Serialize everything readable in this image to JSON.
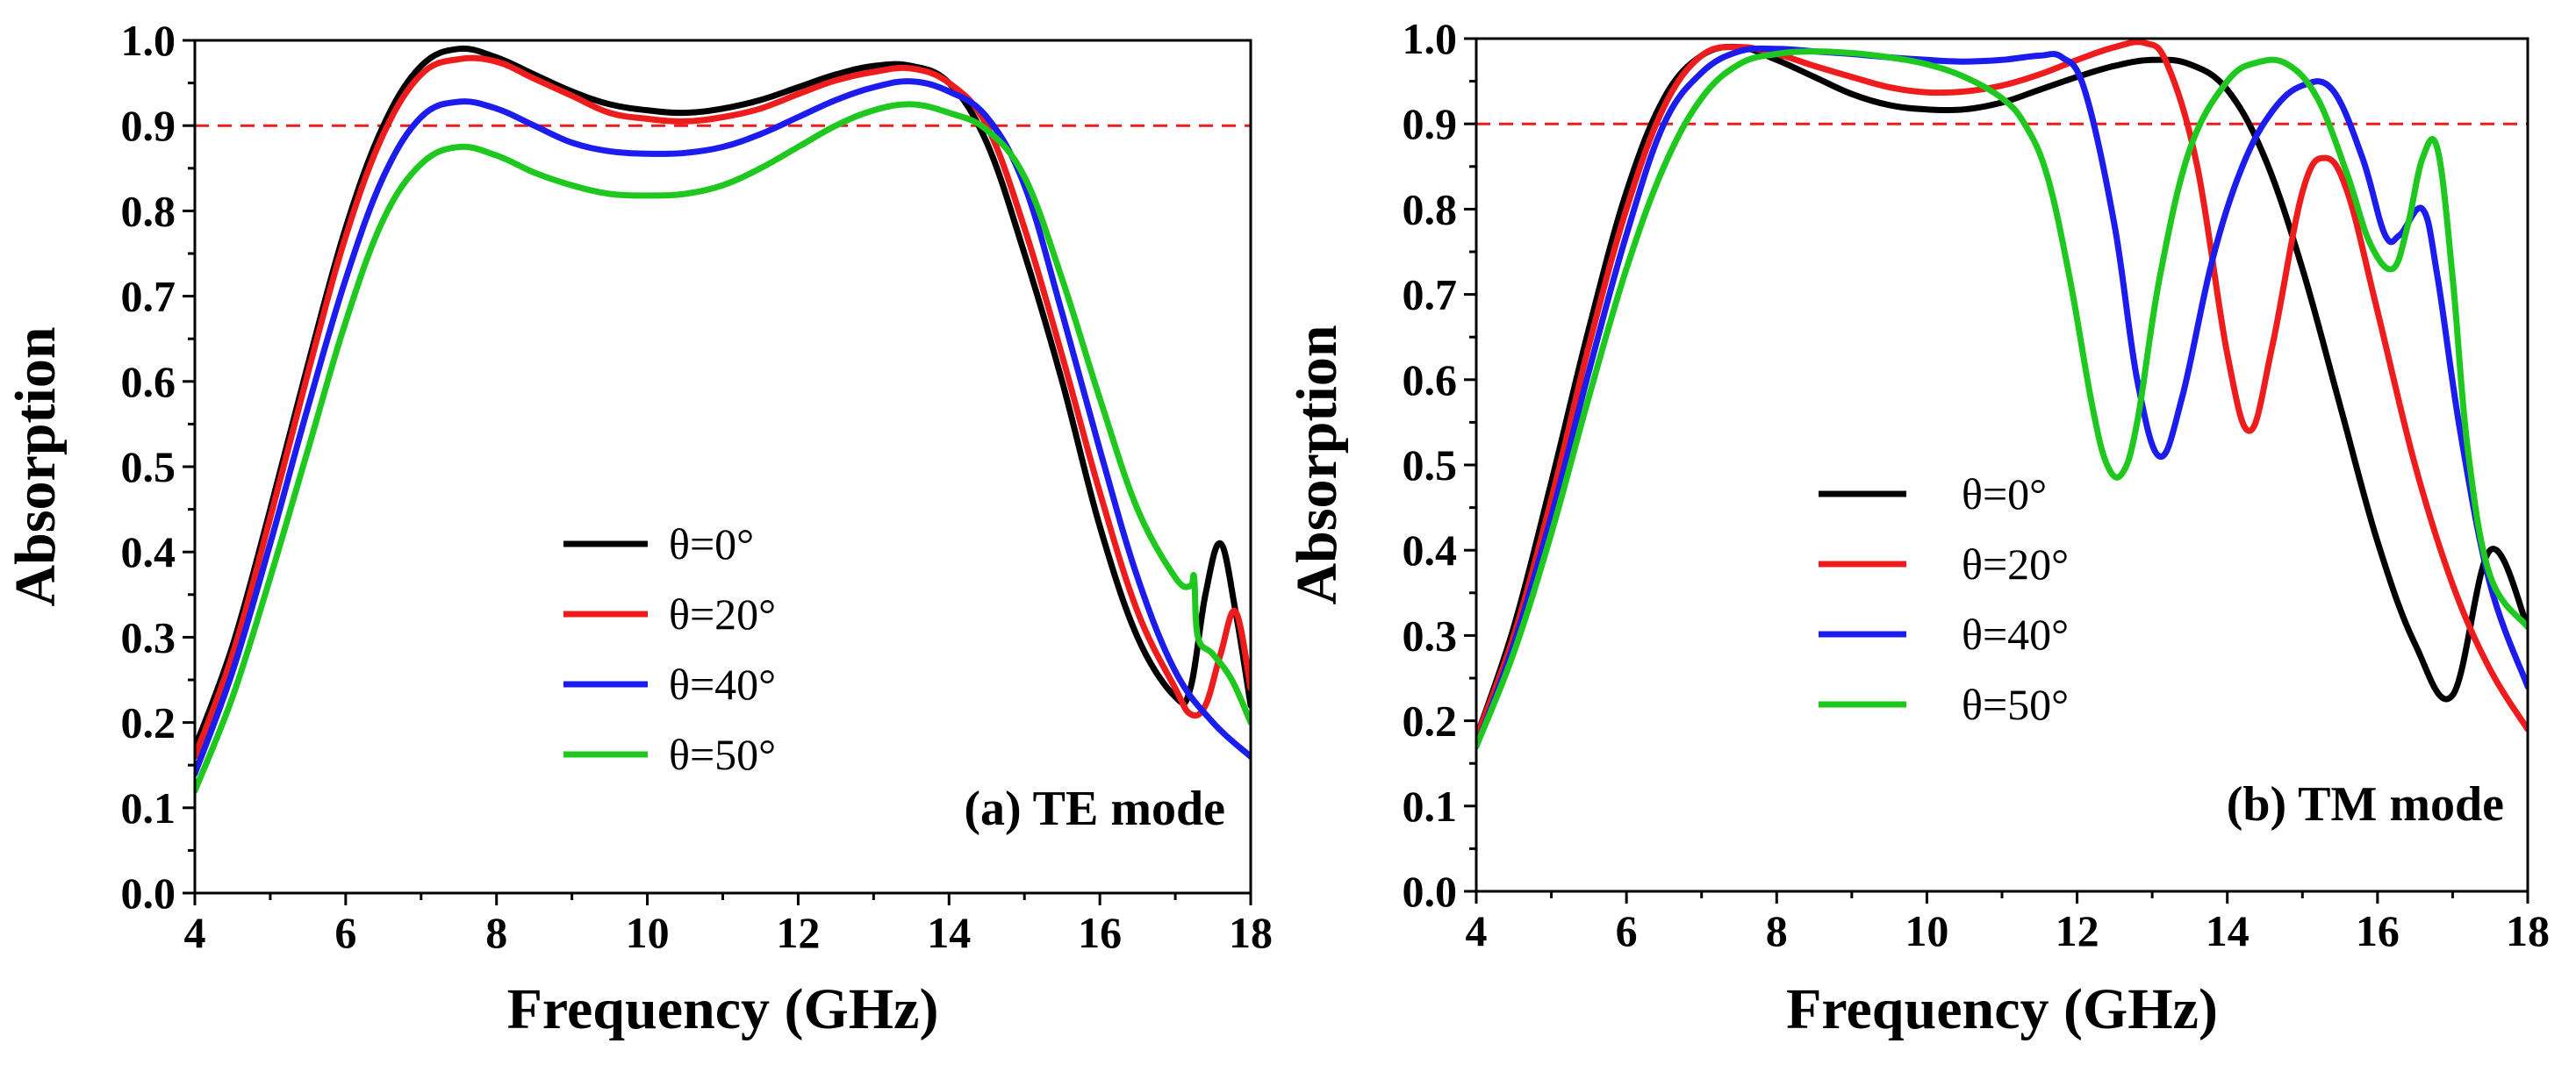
{
  "chart_data": [
    {
      "type": "line",
      "panel": "a",
      "annotation": "(a) TE mode",
      "xlabel": "Frequency (GHz)",
      "ylabel": "Absorption",
      "xlim": [
        4,
        18
      ],
      "ylim": [
        0.0,
        1.0
      ],
      "xticks": [
        4,
        6,
        8,
        10,
        12,
        14,
        16,
        18
      ],
      "yticks": [
        0.0,
        0.1,
        0.2,
        0.3,
        0.4,
        0.5,
        0.6,
        0.7,
        0.8,
        0.9,
        1.0
      ],
      "xtick_labels": [
        "4",
        "6",
        "8",
        "10",
        "12",
        "14",
        "16",
        "18"
      ],
      "ytick_labels": [
        "0.0",
        "0.1",
        "0.2",
        "0.3",
        "0.4",
        "0.5",
        "0.6",
        "0.7",
        "0.8",
        "0.9",
        "1.0"
      ],
      "reference_line": {
        "y": 0.9,
        "color": "#ee1c1c",
        "style": "dashed"
      },
      "legend_position": "center",
      "series": [
        {
          "name": "θ=0°",
          "color": "#000000",
          "x": [
            4,
            4.5,
            5,
            5.5,
            6,
            6.5,
            7,
            7.5,
            8,
            8.5,
            9,
            9.5,
            10,
            10.5,
            11,
            11.5,
            12,
            12.5,
            13,
            13.5,
            14,
            14.5,
            15,
            15.5,
            16,
            16.5,
            17,
            17.2,
            17.4,
            17.6,
            17.8,
            18
          ],
          "y": [
            0.17,
            0.29,
            0.45,
            0.62,
            0.78,
            0.9,
            0.97,
            0.99,
            0.98,
            0.96,
            0.94,
            0.925,
            0.918,
            0.915,
            0.92,
            0.93,
            0.945,
            0.96,
            0.97,
            0.97,
            0.95,
            0.88,
            0.75,
            0.6,
            0.43,
            0.3,
            0.23,
            0.24,
            0.35,
            0.41,
            0.33,
            0.22
          ]
        },
        {
          "name": "θ=20°",
          "color": "#ee1c1c",
          "x": [
            4,
            4.5,
            5,
            5.5,
            6,
            6.5,
            7,
            7.5,
            8,
            8.5,
            9,
            9.5,
            10,
            10.5,
            11,
            11.5,
            12,
            12.5,
            13,
            13.5,
            14,
            14.5,
            15,
            15.5,
            16,
            16.5,
            17,
            17.2,
            17.4,
            17.6,
            17.8,
            18
          ],
          "y": [
            0.16,
            0.28,
            0.44,
            0.61,
            0.77,
            0.89,
            0.96,
            0.978,
            0.975,
            0.955,
            0.935,
            0.915,
            0.908,
            0.905,
            0.91,
            0.92,
            0.937,
            0.953,
            0.963,
            0.967,
            0.95,
            0.9,
            0.78,
            0.63,
            0.47,
            0.33,
            0.24,
            0.21,
            0.22,
            0.28,
            0.33,
            0.24
          ]
        },
        {
          "name": "θ=40°",
          "color": "#1c1cee",
          "x": [
            4,
            4.5,
            5,
            5.5,
            6,
            6.5,
            7,
            7.5,
            8,
            8.5,
            9,
            9.5,
            10,
            10.5,
            11,
            11.5,
            12,
            12.5,
            13,
            13.5,
            14,
            14.5,
            15,
            15.5,
            16,
            16.5,
            17,
            17.5,
            18
          ],
          "y": [
            0.14,
            0.26,
            0.41,
            0.57,
            0.72,
            0.84,
            0.91,
            0.928,
            0.92,
            0.9,
            0.88,
            0.87,
            0.867,
            0.868,
            0.875,
            0.89,
            0.91,
            0.93,
            0.945,
            0.952,
            0.94,
            0.91,
            0.83,
            0.68,
            0.52,
            0.37,
            0.26,
            0.2,
            0.16
          ]
        },
        {
          "name": "θ=50°",
          "color": "#1ec81e",
          "x": [
            4,
            4.5,
            5,
            5.5,
            6,
            6.5,
            7,
            7.5,
            8,
            8.5,
            9,
            9.5,
            10,
            10.5,
            11,
            11.5,
            12,
            12.5,
            13,
            13.5,
            14,
            14.5,
            15,
            15.5,
            16,
            16.5,
            17,
            17.2,
            17.25,
            17.3,
            17.5,
            17.75,
            18
          ],
          "y": [
            0.12,
            0.23,
            0.37,
            0.52,
            0.67,
            0.79,
            0.855,
            0.875,
            0.865,
            0.845,
            0.83,
            0.82,
            0.818,
            0.82,
            0.83,
            0.85,
            0.875,
            0.9,
            0.918,
            0.925,
            0.915,
            0.895,
            0.84,
            0.72,
            0.58,
            0.45,
            0.37,
            0.36,
            0.37,
            0.3,
            0.28,
            0.25,
            0.2
          ]
        }
      ]
    },
    {
      "type": "line",
      "panel": "b",
      "annotation": "(b) TM mode",
      "xlabel": "Frequency (GHz)",
      "ylabel": "Absorption",
      "xlim": [
        4,
        18
      ],
      "ylim": [
        0.0,
        1.0
      ],
      "xticks": [
        4,
        6,
        8,
        10,
        12,
        14,
        16,
        18
      ],
      "yticks": [
        0.0,
        0.1,
        0.2,
        0.3,
        0.4,
        0.5,
        0.6,
        0.7,
        0.8,
        0.9,
        1.0
      ],
      "xtick_labels": [
        "4",
        "6",
        "8",
        "10",
        "12",
        "14",
        "16",
        "18"
      ],
      "ytick_labels": [
        "0.0",
        "0.1",
        "0.2",
        "0.3",
        "0.4",
        "0.5",
        "0.6",
        "0.7",
        "0.8",
        "0.9",
        "1.0"
      ],
      "reference_line": {
        "y": 0.9,
        "color": "#ee1c1c",
        "style": "dashed"
      },
      "legend_position": "center",
      "series": [
        {
          "name": "θ=0°",
          "color": "#000000",
          "x": [
            4,
            4.5,
            5,
            5.5,
            6,
            6.5,
            7,
            7.5,
            8,
            8.5,
            9,
            9.5,
            10,
            10.5,
            11,
            11.5,
            12,
            12.5,
            13,
            13.5,
            14,
            14.5,
            15,
            15.5,
            16,
            16.5,
            17,
            17.5,
            18
          ],
          "y": [
            0.18,
            0.31,
            0.48,
            0.66,
            0.82,
            0.93,
            0.98,
            0.99,
            0.975,
            0.955,
            0.935,
            0.922,
            0.917,
            0.917,
            0.925,
            0.94,
            0.955,
            0.968,
            0.975,
            0.97,
            0.94,
            0.86,
            0.73,
            0.57,
            0.41,
            0.29,
            0.23,
            0.4,
            0.31
          ]
        },
        {
          "name": "θ=20°",
          "color": "#ee1c1c",
          "x": [
            4,
            4.5,
            5,
            5.5,
            6,
            6.5,
            7,
            7.5,
            8,
            8.5,
            9,
            9.5,
            10,
            10.5,
            11,
            11.5,
            12,
            12.5,
            12.9,
            13.2,
            13.6,
            14,
            14.3,
            14.6,
            15,
            15.3,
            15.6,
            16,
            16.5,
            17,
            17.5,
            18
          ],
          "y": [
            0.18,
            0.3,
            0.46,
            0.64,
            0.8,
            0.92,
            0.98,
            0.99,
            0.982,
            0.968,
            0.955,
            0.943,
            0.937,
            0.938,
            0.945,
            0.958,
            0.975,
            0.99,
            0.995,
            0.97,
            0.85,
            0.63,
            0.54,
            0.64,
            0.82,
            0.86,
            0.82,
            0.68,
            0.5,
            0.36,
            0.26,
            0.19
          ]
        },
        {
          "name": "θ=40°",
          "color": "#1c1cee",
          "x": [
            4,
            4.5,
            5,
            5.5,
            6,
            6.5,
            7,
            7.5,
            8,
            8.5,
            9,
            9.5,
            10,
            10.5,
            11,
            11.5,
            11.8,
            12.1,
            12.5,
            12.8,
            13.1,
            13.4,
            13.8,
            14.2,
            14.6,
            15,
            15.4,
            15.8,
            16.1,
            16.3,
            16.6,
            16.8,
            17.1,
            17.5,
            18
          ],
          "y": [
            0.17,
            0.29,
            0.44,
            0.61,
            0.77,
            0.9,
            0.96,
            0.985,
            0.988,
            0.985,
            0.982,
            0.978,
            0.975,
            0.973,
            0.975,
            0.98,
            0.978,
            0.94,
            0.78,
            0.6,
            0.51,
            0.58,
            0.74,
            0.85,
            0.915,
            0.945,
            0.94,
            0.86,
            0.77,
            0.77,
            0.8,
            0.72,
            0.54,
            0.36,
            0.24
          ]
        },
        {
          "name": "θ=50°",
          "color": "#1ec81e",
          "x": [
            4,
            4.5,
            5,
            5.5,
            6,
            6.5,
            7,
            7.5,
            8,
            8.5,
            9,
            9.5,
            10,
            10.5,
            11,
            11.3,
            11.6,
            11.9,
            12.2,
            12.4,
            12.6,
            12.8,
            13.1,
            13.5,
            14,
            14.4,
            14.8,
            15.2,
            15.6,
            15.9,
            16.2,
            16.4,
            16.6,
            16.8,
            17,
            17.2,
            17.5,
            18
          ],
          "y": [
            0.17,
            0.28,
            0.42,
            0.58,
            0.73,
            0.85,
            0.93,
            0.97,
            0.982,
            0.985,
            0.983,
            0.978,
            0.97,
            0.955,
            0.93,
            0.9,
            0.84,
            0.72,
            0.57,
            0.5,
            0.49,
            0.55,
            0.72,
            0.87,
            0.95,
            0.972,
            0.97,
            0.93,
            0.84,
            0.76,
            0.73,
            0.78,
            0.86,
            0.87,
            0.72,
            0.52,
            0.37,
            0.31
          ]
        }
      ]
    }
  ]
}
